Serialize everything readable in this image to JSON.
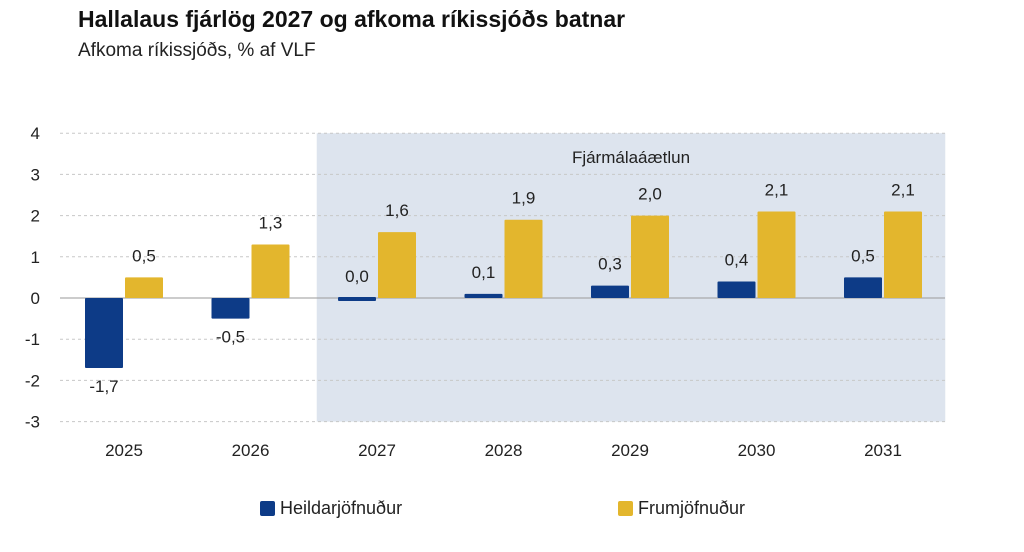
{
  "title": "Hallalaus fjárlög 2027 og afkoma ríkissjóðs batnar",
  "subtitle": "Afkoma ríkissjóðs, % af VLF",
  "chart_data": {
    "type": "bar",
    "categories": [
      "2025",
      "2026",
      "2027",
      "2028",
      "2029",
      "2030",
      "2031"
    ],
    "series": [
      {
        "name": "Heildarjöfnuður",
        "color": "#0d3b87",
        "values": [
          -1.7,
          -0.5,
          0.0,
          0.1,
          0.3,
          0.4,
          0.5
        ],
        "labels": [
          "-1,7",
          "-0,5",
          "0,0",
          "0,1",
          "0,3",
          "0,4",
          "0,5"
        ]
      },
      {
        "name": "Frumjöfnuður",
        "color": "#e3b62d",
        "values": [
          0.5,
          1.3,
          1.6,
          1.9,
          2.0,
          2.1,
          2.1
        ],
        "labels": [
          "0,5",
          "1,3",
          "1,6",
          "1,9",
          "2,0",
          "2,1",
          "2,1"
        ]
      }
    ],
    "ylim": [
      -3,
      4
    ],
    "yticks": [
      4,
      3,
      2,
      1,
      0,
      -1,
      -2,
      -3
    ],
    "grid": true,
    "shaded_region": {
      "label": "Fjármálaáætlun",
      "from_category": "2027",
      "to_category": "2031",
      "color": "#dde4ee"
    },
    "legend_position": "bottom"
  }
}
